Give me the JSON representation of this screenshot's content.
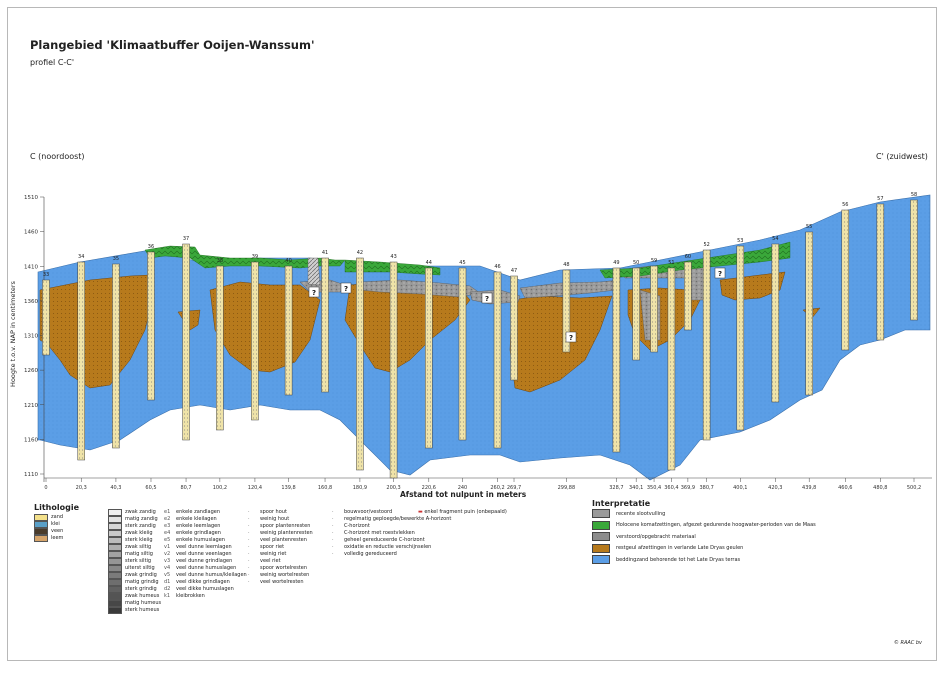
{
  "header": {
    "title": "Plangebied 'Klimaatbuffer Ooijen-Wanssum'",
    "subtitle": "profiel C-C'",
    "left_end": "C (noordoost)",
    "right_end": "C' (zuidwest)"
  },
  "yaxis": {
    "label": "Hoogte t.o.v. NAP in centimeters",
    "ticks": [
      "1510",
      "1460",
      "1410",
      "1360",
      "1310",
      "1260",
      "1210",
      "1160",
      "1110"
    ]
  },
  "xaxis": {
    "title": "Afstand tot nulpunt in meters",
    "ticks": [
      "0",
      "20,3",
      "40,3",
      "60,5",
      "80,7",
      "100,2",
      "120,4",
      "139,8",
      "160,8",
      "180,9",
      "200,3",
      "220,6",
      "240",
      "260,2",
      "269,7",
      "299,88",
      "328,7",
      "340,1",
      "350,4",
      "360,4",
      "369,9",
      "380,7",
      "400,1",
      "420,3",
      "439,8",
      "460,6",
      "480,8",
      "500,2"
    ]
  },
  "boreholes": [
    "33",
    "34",
    "35",
    "36",
    "37",
    "38",
    "39",
    "40",
    "41",
    "42",
    "43",
    "44",
    "45",
    "46",
    "47",
    "48",
    "49",
    "50",
    "59",
    "51",
    "60",
    "52",
    "53",
    "54",
    "55",
    "56",
    "57",
    "58"
  ],
  "question_mark": "?",
  "lithologie": {
    "title": "Lithologie",
    "main": [
      {
        "label": "zand",
        "color": "#f3e08a"
      },
      {
        "label": "klei",
        "color": "#5aa0c8"
      },
      {
        "label": "veen",
        "color": "#4a3b2a"
      },
      {
        "label": "leem",
        "color": "#d6a46a"
      }
    ],
    "modifiers": [
      "zwak zandig",
      "matig zandig",
      "sterk zandig",
      "zwak kleiig",
      "sterk kleiig",
      "zwak siltig",
      "matig siltig",
      "sterk siltig",
      "uiterst siltig",
      "zwak grindig",
      "matig grindig",
      "sterk grindig",
      "zwak humeus",
      "matig humeus",
      "sterk humeus"
    ],
    "admixtures": [
      [
        "e1",
        "enkele zandlagen"
      ],
      [
        "e2",
        "enkele kleilagen"
      ],
      [
        "e3",
        "enkele leemlagen"
      ],
      [
        "e4",
        "enkele grindlagen"
      ],
      [
        "e5",
        "enkele humuslagen"
      ],
      [
        "v1",
        "veel dunne leemlagen"
      ],
      [
        "v2",
        "veel dunne veenlagen"
      ],
      [
        "v3",
        "veel dunne grindlagen"
      ],
      [
        "v4",
        "veel dunne humuslagen"
      ],
      [
        "v5",
        "veel dunne humus/kleilagen"
      ],
      [
        "d1",
        "veel dikke grindlagen"
      ],
      [
        "d2",
        "veel dikke humuslagen"
      ],
      [
        "k1",
        "kleibrokken"
      ]
    ],
    "remnants": [
      "spoor hout",
      "weinig hout",
      "spoor plantenresten",
      "weinig plantenresten",
      "veel plantenresten",
      "spoor riet",
      "weinig riet",
      "veel riet",
      "spoor wortelresten",
      "weinig wortelresten",
      "veel wortelresten"
    ],
    "soil": [
      "bouwvoor/vestoord",
      "regelmatig geploegde/bewerkte A-horizont",
      "C-horizont",
      "C-horizont met roestvlekken",
      "geheel gereduceerde C-horizont",
      "oxidatie en reductie verschijnselen",
      "volledig gereduceerd"
    ],
    "find": "enkel fragment puin (onbepaald)"
  },
  "interpretatie": {
    "title": "Interpretatie",
    "items": [
      {
        "label": "recente slootvulling",
        "color": "#9a9a9a"
      },
      {
        "label": "Holocene komafzettingen, afgezet gedurende hoogwater-perioden van de Maas",
        "color": "#3aa83a"
      },
      {
        "label": "verstoord/opgebracht materiaal",
        "color": "#8c8c8c"
      },
      {
        "label": "restgeul afzettingen in verlande Late Dryas geulen",
        "color": "#b77a1c"
      },
      {
        "label": "beddingzand behorende tot het Late Dryas terras",
        "color": "#5b9ee6"
      }
    ]
  },
  "copyright": "© RAAC bv"
}
